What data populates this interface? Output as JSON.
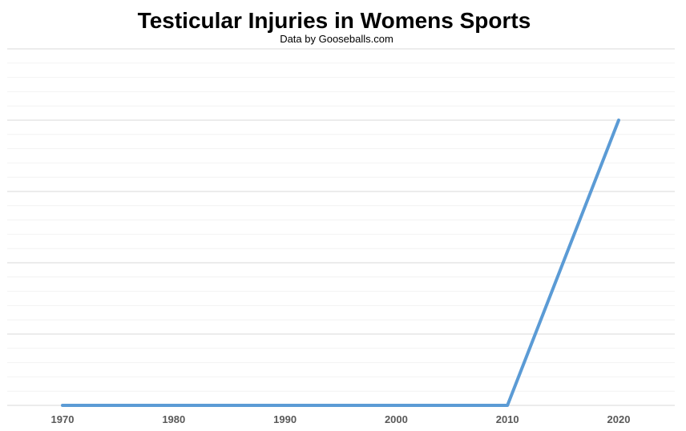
{
  "chart_data": {
    "type": "line",
    "title": "Testicular Injuries in Womens Sports",
    "subtitle": "Data by Gooseballs.com",
    "xlabel": "",
    "ylabel": "",
    "categories": [
      "1970",
      "1980",
      "1990",
      "2000",
      "2010",
      "2020"
    ],
    "series": [
      {
        "values": [
          0,
          0,
          0,
          0,
          0,
          100
        ],
        "color": "#5b9bd5"
      }
    ],
    "ylim": [
      0,
      125
    ],
    "grid": true,
    "legend": "none"
  }
}
